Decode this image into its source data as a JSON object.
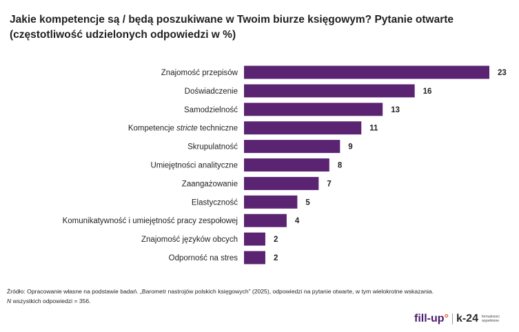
{
  "title": {
    "line1": "Jakie kompetencje są / będą poszukiwane w Twoim biurze księgowym? Pytanie otwarte",
    "line2": "(częstotliwość udzielonych odpowiedzi w %)"
  },
  "chart_data": {
    "type": "bar",
    "orientation": "horizontal",
    "categories": [
      "Znajomość przepisów",
      "Doświadczenie",
      "Samodzielność",
      "Kompetencje stricte techniczne",
      "Skrupulatność",
      "Umiejętności analityczne",
      "Zaangażowanie",
      "Elastyczność",
      "Komunikatywność i umiejętność pracy zespołowej",
      "Znajomość języków obcych",
      "Odporność na stres"
    ],
    "values": [
      23,
      16,
      13,
      11,
      9,
      8,
      7,
      5,
      4,
      2,
      2
    ],
    "data_labels": [
      "23",
      "16",
      "13",
      "11",
      "9",
      "8",
      "7",
      "5",
      "4",
      "2",
      "2"
    ],
    "italic_word": "stricte",
    "xlim": [
      0,
      23
    ],
    "grid": false,
    "bar_color": "#5b2473"
  },
  "footer": {
    "source": "Źródło: Opracowanie własne na podstawie badań. „Barometr nastrojów polskich księgowych” (2025), odpowiedzi na pytanie otwarte, w tym wielokrotne wskazania.",
    "n_italic": "N",
    "n_text": " wszystkich odpowiedzi = 356."
  },
  "logos": {
    "fillup_main": "fill-up",
    "fillup_mark": "°",
    "k24_main": "k-24",
    "k24_tag": "formalności wypełnione"
  }
}
